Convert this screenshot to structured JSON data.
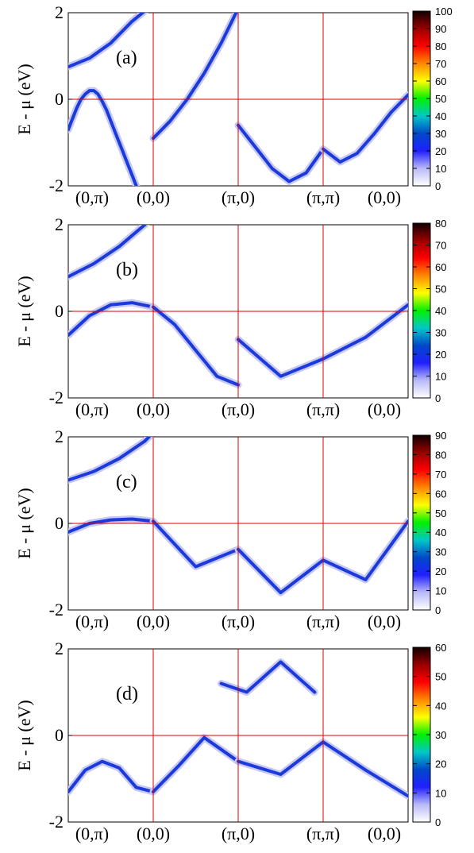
{
  "chart_data": [
    {
      "type": "heatmap",
      "panel_label": "(a)",
      "ylabel": "E - μ (eV)",
      "ylim": [
        -2,
        2
      ],
      "yticks": [
        "2",
        "0",
        "-2"
      ],
      "xticks": [
        "(0,π)",
        "(0,0)",
        "(π,0)",
        "(π,π)",
        "(0,0)"
      ],
      "colorbar": {
        "ticks": [
          "100",
          "90",
          "80",
          "70",
          "60",
          "50",
          "40",
          "30",
          "20",
          "10",
          "0"
        ]
      },
      "bands": [
        {
          "x": [
            0,
            0.05,
            0.1,
            0.15,
            0.2,
            0.25,
            0.3,
            0.35,
            0.4,
            0.45,
            0.5,
            0.55,
            0.6,
            0.65,
            0.7,
            0.75,
            0.8,
            0.85,
            0.9,
            0.95,
            1.0
          ],
          "y": [
            -0.7,
            -0.45,
            -0.2,
            0.0,
            0.12,
            0.2,
            0.2,
            0.12,
            -0.05,
            -0.25,
            -0.5,
            -0.75,
            -1.0,
            -1.25,
            -1.5,
            -1.75,
            -2.0,
            -2.2,
            -2.3,
            -2.3,
            -2.2
          ]
        },
        {
          "x": [
            1.0,
            1.2,
            1.4,
            1.6,
            1.8,
            2.0
          ],
          "y": [
            -0.9,
            -0.5,
            0.0,
            0.6,
            1.3,
            2.1
          ]
        },
        {
          "x": [
            2.0,
            2.2,
            2.4,
            2.6,
            2.8,
            3.0
          ],
          "y": [
            -0.6,
            -1.1,
            -1.6,
            -1.9,
            -1.7,
            -1.15
          ]
        },
        {
          "x": [
            3.0,
            3.2,
            3.4,
            3.6,
            3.8,
            4.0
          ],
          "y": [
            -1.15,
            -1.45,
            -1.25,
            -0.8,
            -0.3,
            0.1
          ]
        },
        {
          "x": [
            0,
            0.25,
            0.5,
            0.75,
            1.0
          ],
          "y": [
            0.75,
            0.95,
            1.3,
            1.8,
            2.2
          ]
        }
      ]
    },
    {
      "type": "heatmap",
      "panel_label": "(b)",
      "ylabel": "E - μ (eV)",
      "ylim": [
        -2,
        2
      ],
      "yticks": [
        "2",
        "0",
        "-2"
      ],
      "xticks": [
        "(0,π)",
        "(0,0)",
        "(π,0)",
        "(π,π)",
        "(0,0)"
      ],
      "colorbar": {
        "ticks": [
          "80",
          "70",
          "60",
          "50",
          "40",
          "30",
          "20",
          "10",
          "0"
        ]
      },
      "bands": [
        {
          "x": [
            0,
            0.25,
            0.5,
            0.75,
            1.0
          ],
          "y": [
            -0.55,
            -0.1,
            0.15,
            0.2,
            0.1
          ]
        },
        {
          "x": [
            1.0,
            1.25,
            1.5,
            1.75,
            2.0
          ],
          "y": [
            0.1,
            -0.3,
            -0.9,
            -1.5,
            -1.7
          ]
        },
        {
          "x": [
            2.0,
            2.5,
            3.0,
            3.5,
            4.0
          ],
          "y": [
            -0.65,
            -1.5,
            -1.1,
            -0.6,
            0.15
          ]
        },
        {
          "x": [
            0,
            0.3,
            0.6,
            0.9,
            1.0
          ],
          "y": [
            0.8,
            1.1,
            1.5,
            2.0,
            2.2
          ]
        }
      ]
    },
    {
      "type": "heatmap",
      "panel_label": "(c)",
      "ylabel": "E - μ (eV)",
      "ylim": [
        -2,
        2
      ],
      "yticks": [
        "2",
        "0",
        "-2"
      ],
      "xticks": [
        "(0,π)",
        "(0,0)",
        "(π,0)",
        "(π,π)",
        "(0,0)"
      ],
      "colorbar": {
        "ticks": [
          "90",
          "80",
          "70",
          "60",
          "50",
          "40",
          "30",
          "20",
          "10",
          "0"
        ]
      },
      "bands": [
        {
          "x": [
            0,
            0.25,
            0.5,
            0.75,
            1.0
          ],
          "y": [
            -0.2,
            0.0,
            0.08,
            0.1,
            0.05
          ]
        },
        {
          "x": [
            1.0,
            1.5,
            2.0
          ],
          "y": [
            0.05,
            -1.0,
            -0.6
          ]
        },
        {
          "x": [
            2.0,
            2.5,
            3.0,
            3.5,
            4.0
          ],
          "y": [
            -0.6,
            -1.6,
            -0.85,
            -1.3,
            0.05
          ]
        },
        {
          "x": [
            0,
            0.3,
            0.6,
            0.9,
            1.0
          ],
          "y": [
            1.0,
            1.2,
            1.5,
            1.9,
            2.1
          ]
        }
      ]
    },
    {
      "type": "heatmap",
      "panel_label": "(d)",
      "ylabel": "E - μ (eV)",
      "ylim": [
        -2,
        2
      ],
      "yticks": [
        "2",
        "0",
        "-2"
      ],
      "xticks": [
        "(0,π)",
        "(0,0)",
        "(π,0)",
        "(π,π)",
        "(0,0)"
      ],
      "colorbar": {
        "ticks": [
          "60",
          "50",
          "40",
          "30",
          "20",
          "10",
          "0"
        ]
      },
      "bands": [
        {
          "x": [
            0,
            0.2,
            0.4,
            0.6,
            0.8,
            1.0
          ],
          "y": [
            -1.3,
            -0.8,
            -0.6,
            -0.75,
            -1.2,
            -1.3
          ]
        },
        {
          "x": [
            1.0,
            1.3,
            1.6,
            2.0
          ],
          "y": [
            -1.3,
            -0.7,
            -0.05,
            -0.6
          ]
        },
        {
          "x": [
            2.0,
            2.5,
            3.0,
            3.5,
            4.0
          ],
          "y": [
            -0.6,
            -0.9,
            -0.15,
            -0.8,
            -1.4
          ]
        },
        {
          "x": [
            1.8,
            2.1,
            2.5,
            2.9
          ],
          "y": [
            1.2,
            1.0,
            1.7,
            1.0
          ]
        }
      ]
    }
  ]
}
